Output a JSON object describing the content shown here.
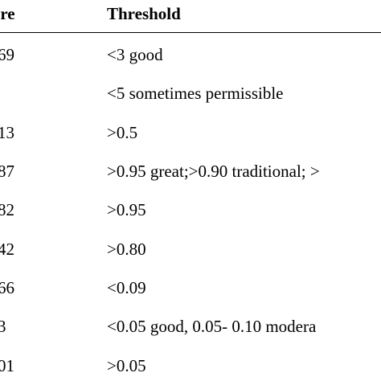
{
  "table": {
    "headers": {
      "measure": "asure",
      "threshold": "Threshold"
    },
    "rows": [
      {
        "measure": "69",
        "threshold": "<3 good"
      },
      {
        "measure": "",
        "threshold": "<5 sometimes permissible"
      },
      {
        "measure": "13",
        "threshold": ">0.5"
      },
      {
        "measure": "87",
        "threshold": ">0.95 great;>0.90 traditional; >"
      },
      {
        "measure": "82",
        "threshold": ">0.95"
      },
      {
        "measure": "42",
        "threshold": ">0.80"
      },
      {
        "measure": "66",
        "threshold": "<0.09"
      },
      {
        "measure": "3",
        "threshold": "<0.05 good, 0.05- 0.10 modera"
      },
      {
        "measure": "01",
        "threshold": ">0.05"
      }
    ]
  }
}
